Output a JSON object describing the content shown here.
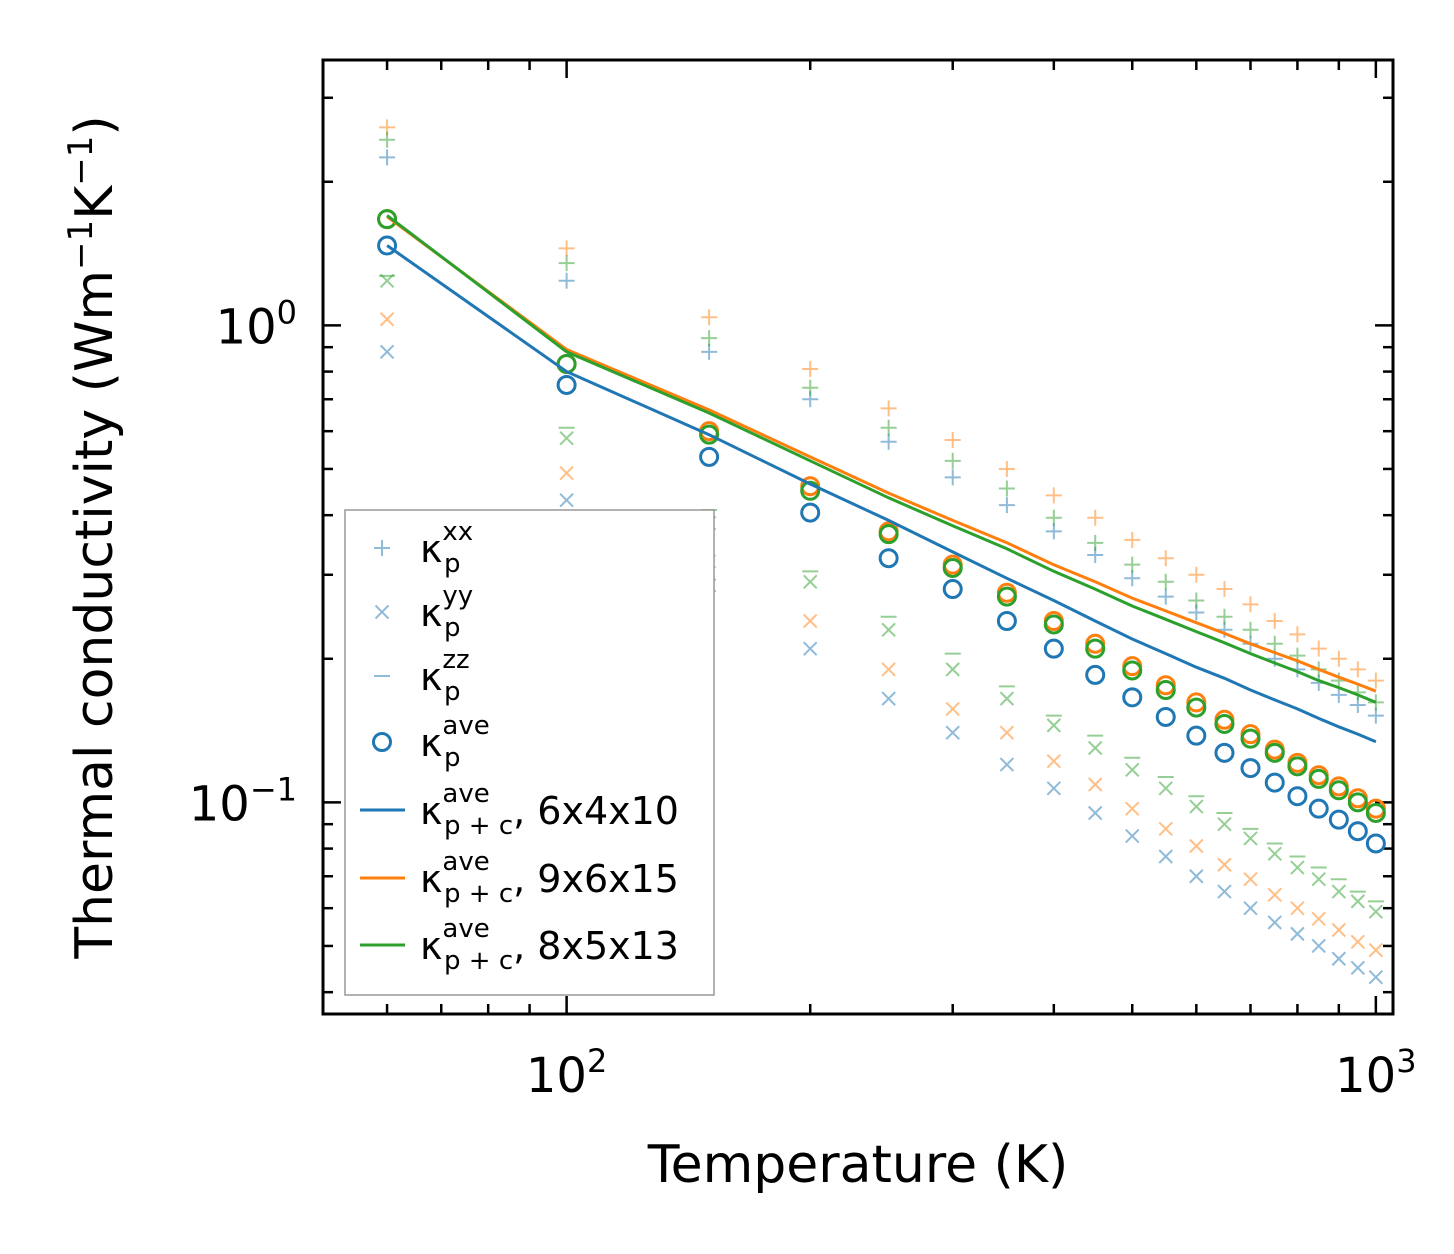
{
  "chart_data": {
    "type": "scatter",
    "xscale": "log",
    "yscale": "log",
    "xlabel": "Temperature (K)",
    "ylabel_main": "Thermal conductivity (Wm",
    "ylabel_sup1": "−1",
    "ylabel_mid": "K",
    "ylabel_sup2": "−1",
    "ylabel_end": ")",
    "xlim": [
      50,
      1050
    ],
    "ylim": [
      0.036,
      3.6
    ],
    "x_ticks": [
      {
        "value": 100,
        "base": "10",
        "exp": "2"
      },
      {
        "value": 1000,
        "base": "10",
        "exp": "3"
      }
    ],
    "y_ticks": [
      {
        "value": 1.0,
        "base": "10",
        "exp": "0"
      },
      {
        "value": 0.1,
        "base": "10",
        "exp": "−1"
      }
    ],
    "x": [
      60,
      100,
      150,
      200,
      250,
      300,
      350,
      400,
      450,
      500,
      550,
      600,
      650,
      700,
      750,
      800,
      850,
      900,
      950,
      1000
    ],
    "colors": {
      "blue": "#1f77b4",
      "orange": "#ff7f0e",
      "green": "#2ca02c"
    },
    "series": [
      {
        "name": "kxx 6x4x10",
        "marker": "plus",
        "color": "#1f77b4",
        "alpha": 0.5,
        "values": [
          2.25,
          1.24,
          0.88,
          0.7,
          0.57,
          0.48,
          0.42,
          0.37,
          0.33,
          0.295,
          0.27,
          0.25,
          0.23,
          0.215,
          0.2,
          0.19,
          0.178,
          0.168,
          0.16,
          0.152
        ]
      },
      {
        "name": "kxx 9x6x15",
        "marker": "plus",
        "color": "#ff7f0e",
        "alpha": 0.5,
        "values": [
          2.6,
          1.45,
          1.04,
          0.81,
          0.67,
          0.575,
          0.5,
          0.44,
          0.395,
          0.355,
          0.325,
          0.3,
          0.28,
          0.26,
          0.24,
          0.225,
          0.21,
          0.2,
          0.19,
          0.18
        ]
      },
      {
        "name": "kxx 8x5x13",
        "marker": "plus",
        "color": "#2ca02c",
        "alpha": 0.5,
        "values": [
          2.45,
          1.35,
          0.94,
          0.74,
          0.61,
          0.52,
          0.455,
          0.395,
          0.35,
          0.315,
          0.29,
          0.265,
          0.245,
          0.23,
          0.215,
          0.203,
          0.19,
          0.18,
          0.17,
          0.162
        ]
      },
      {
        "name": "kyy 6x4x10",
        "marker": "x",
        "color": "#1f77b4",
        "alpha": 0.5,
        "values": [
          0.88,
          0.43,
          0.285,
          0.21,
          0.165,
          0.14,
          0.12,
          0.107,
          0.095,
          0.085,
          0.077,
          0.07,
          0.065,
          0.06,
          0.056,
          0.053,
          0.05,
          0.047,
          0.045,
          0.043
        ]
      },
      {
        "name": "kyy 9x6x15",
        "marker": "x",
        "color": "#ff7f0e",
        "alpha": 0.5,
        "values": [
          1.03,
          0.49,
          0.32,
          0.24,
          0.19,
          0.157,
          0.14,
          0.122,
          0.109,
          0.097,
          0.088,
          0.081,
          0.074,
          0.069,
          0.064,
          0.06,
          0.057,
          0.054,
          0.051,
          0.049
        ]
      },
      {
        "name": "kyy 8x5x13",
        "marker": "x",
        "color": "#2ca02c",
        "alpha": 0.5,
        "values": [
          1.24,
          0.58,
          0.385,
          0.29,
          0.23,
          0.19,
          0.165,
          0.145,
          0.13,
          0.117,
          0.107,
          0.098,
          0.09,
          0.084,
          0.078,
          0.073,
          0.069,
          0.065,
          0.062,
          0.059
        ]
      },
      {
        "name": "kzz 8x5x13",
        "marker": "hline",
        "color": "#2ca02c",
        "alpha": 0.5,
        "values": [
          1.27,
          0.61,
          0.41,
          0.305,
          0.245,
          0.205,
          0.175,
          0.152,
          0.138,
          0.124,
          0.113,
          0.103,
          0.095,
          0.088,
          0.082,
          0.077,
          0.073,
          0.069,
          0.065,
          0.062
        ]
      },
      {
        "name": "kave 6x4x10",
        "marker": "circle",
        "color": "#1f77b4",
        "alpha": 1,
        "values": [
          1.47,
          0.75,
          0.53,
          0.405,
          0.325,
          0.28,
          0.24,
          0.21,
          0.185,
          0.166,
          0.151,
          0.138,
          0.127,
          0.118,
          0.11,
          0.103,
          0.097,
          0.092,
          0.087,
          0.082
        ]
      },
      {
        "name": "kave 9x6x15",
        "marker": "circle",
        "color": "#ff7f0e",
        "alpha": 1,
        "values": [
          1.67,
          0.83,
          0.6,
          0.46,
          0.37,
          0.315,
          0.275,
          0.24,
          0.215,
          0.193,
          0.176,
          0.162,
          0.149,
          0.139,
          0.129,
          0.121,
          0.114,
          0.108,
          0.102,
          0.097
        ]
      },
      {
        "name": "kave 8x5x13",
        "marker": "circle",
        "color": "#2ca02c",
        "alpha": 1,
        "values": [
          1.67,
          0.83,
          0.59,
          0.45,
          0.365,
          0.31,
          0.27,
          0.236,
          0.21,
          0.189,
          0.172,
          0.158,
          0.146,
          0.136,
          0.127,
          0.119,
          0.112,
          0.106,
          0.1,
          0.095
        ]
      },
      {
        "name": "kpc 6x4x10",
        "marker": "line",
        "color": "#1f77b4",
        "alpha": 1,
        "values": [
          1.47,
          0.8,
          0.59,
          0.465,
          0.39,
          0.335,
          0.295,
          0.265,
          0.24,
          0.22,
          0.205,
          0.192,
          0.182,
          0.172,
          0.164,
          0.157,
          0.15,
          0.144,
          0.139,
          0.134
        ]
      },
      {
        "name": "kpc 9x6x15",
        "marker": "line",
        "color": "#ff7f0e",
        "alpha": 1,
        "values": [
          1.69,
          0.89,
          0.665,
          0.53,
          0.445,
          0.39,
          0.35,
          0.315,
          0.29,
          0.268,
          0.252,
          0.238,
          0.226,
          0.215,
          0.206,
          0.198,
          0.19,
          0.183,
          0.177,
          0.171
        ]
      },
      {
        "name": "kpc 8x5x13",
        "marker": "line",
        "color": "#2ca02c",
        "alpha": 1,
        "values": [
          1.7,
          0.88,
          0.655,
          0.52,
          0.435,
          0.38,
          0.34,
          0.305,
          0.28,
          0.258,
          0.242,
          0.228,
          0.216,
          0.205,
          0.196,
          0.188,
          0.18,
          0.174,
          0.168,
          0.162
        ]
      }
    ],
    "legend": {
      "position": "lower-left",
      "entries": [
        {
          "kappa": "κ",
          "sub": "p",
          "sup": "xx",
          "suffix": "",
          "marker": "plus",
          "color": "#1f77b4",
          "alpha": 0.5
        },
        {
          "kappa": "κ",
          "sub": "p",
          "sup": "yy",
          "suffix": "",
          "marker": "x",
          "color": "#1f77b4",
          "alpha": 0.5
        },
        {
          "kappa": "κ",
          "sub": "p",
          "sup": "zz",
          "suffix": "",
          "marker": "hline",
          "color": "#1f77b4",
          "alpha": 0.5
        },
        {
          "kappa": "κ",
          "sub": "p",
          "sup": "ave",
          "suffix": "",
          "marker": "circle",
          "color": "#1f77b4",
          "alpha": 1
        },
        {
          "kappa": "κ",
          "sub": "p + c",
          "sup": "ave",
          "suffix": ", 6x4x10",
          "marker": "line",
          "color": "#1f77b4",
          "alpha": 1
        },
        {
          "kappa": "κ",
          "sub": "p + c",
          "sup": "ave",
          "suffix": ", 9x6x15",
          "marker": "line",
          "color": "#ff7f0e",
          "alpha": 1
        },
        {
          "kappa": "κ",
          "sub": "p + c",
          "sup": "ave",
          "suffix": ", 8x5x13",
          "marker": "line",
          "color": "#2ca02c",
          "alpha": 1
        }
      ]
    }
  }
}
